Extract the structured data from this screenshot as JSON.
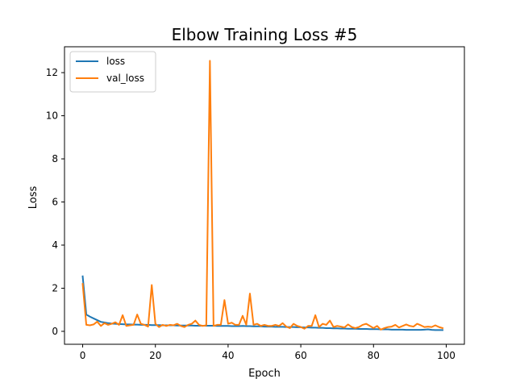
{
  "chart_data": {
    "type": "line",
    "title": "Elbow Training Loss #5",
    "xlabel": "Epoch",
    "ylabel": "Loss",
    "xlim": [
      -5,
      105
    ],
    "ylim": [
      -0.6,
      13.2
    ],
    "xticks": [
      0,
      20,
      40,
      60,
      80,
      100
    ],
    "yticks": [
      0,
      2,
      4,
      6,
      8,
      10,
      12
    ],
    "grid": false,
    "legend_position": "upper-left",
    "series": [
      {
        "name": "loss",
        "color": "#1f77b4",
        "x": [
          0,
          1,
          2,
          3,
          4,
          5,
          6,
          7,
          8,
          9,
          10,
          11,
          12,
          13,
          14,
          15,
          16,
          17,
          18,
          19,
          20,
          21,
          22,
          23,
          24,
          25,
          26,
          27,
          28,
          29,
          30,
          31,
          32,
          33,
          34,
          35,
          36,
          37,
          38,
          39,
          40,
          41,
          42,
          43,
          44,
          45,
          46,
          47,
          48,
          49,
          50,
          51,
          52,
          53,
          54,
          55,
          56,
          57,
          58,
          59,
          60,
          61,
          62,
          63,
          64,
          65,
          66,
          67,
          68,
          69,
          70,
          71,
          72,
          73,
          74,
          75,
          76,
          77,
          78,
          79,
          80,
          81,
          82,
          83,
          84,
          85,
          86,
          87,
          88,
          89,
          90,
          91,
          92,
          93,
          94,
          95,
          96,
          97,
          98,
          99
        ],
        "y": [
          2.55,
          0.78,
          0.68,
          0.6,
          0.52,
          0.44,
          0.41,
          0.38,
          0.36,
          0.35,
          0.34,
          0.33,
          0.32,
          0.32,
          0.31,
          0.31,
          0.3,
          0.3,
          0.3,
          0.29,
          0.29,
          0.29,
          0.28,
          0.28,
          0.28,
          0.28,
          0.27,
          0.27,
          0.27,
          0.27,
          0.27,
          0.26,
          0.26,
          0.26,
          0.26,
          0.26,
          0.26,
          0.25,
          0.25,
          0.25,
          0.25,
          0.24,
          0.24,
          0.24,
          0.25,
          0.24,
          0.24,
          0.23,
          0.23,
          0.23,
          0.22,
          0.22,
          0.22,
          0.21,
          0.21,
          0.21,
          0.2,
          0.2,
          0.2,
          0.19,
          0.19,
          0.18,
          0.18,
          0.17,
          0.17,
          0.16,
          0.16,
          0.15,
          0.15,
          0.14,
          0.14,
          0.13,
          0.13,
          0.12,
          0.12,
          0.12,
          0.11,
          0.11,
          0.11,
          0.1,
          0.1,
          0.1,
          0.09,
          0.09,
          0.09,
          0.08,
          0.08,
          0.08,
          0.08,
          0.07,
          0.07,
          0.07,
          0.07,
          0.07,
          0.08,
          0.09,
          0.07,
          0.06,
          0.06,
          0.06
        ]
      },
      {
        "name": "val_loss",
        "color": "#ff7f0e",
        "x": [
          0,
          1,
          2,
          3,
          4,
          5,
          6,
          7,
          8,
          9,
          10,
          11,
          12,
          13,
          14,
          15,
          16,
          17,
          18,
          19,
          20,
          21,
          22,
          23,
          24,
          25,
          26,
          27,
          28,
          29,
          30,
          31,
          32,
          33,
          34,
          35,
          36,
          37,
          38,
          39,
          40,
          41,
          42,
          43,
          44,
          45,
          46,
          47,
          48,
          49,
          50,
          51,
          52,
          53,
          54,
          55,
          56,
          57,
          58,
          59,
          60,
          61,
          62,
          63,
          64,
          65,
          66,
          67,
          68,
          69,
          70,
          71,
          72,
          73,
          74,
          75,
          76,
          77,
          78,
          79,
          80,
          81,
          82,
          83,
          84,
          85,
          86,
          87,
          88,
          89,
          90,
          91,
          92,
          93,
          94,
          95,
          96,
          97,
          98,
          99
        ],
        "y": [
          2.2,
          0.3,
          0.28,
          0.32,
          0.45,
          0.25,
          0.38,
          0.3,
          0.35,
          0.42,
          0.3,
          0.75,
          0.25,
          0.28,
          0.3,
          0.78,
          0.35,
          0.3,
          0.22,
          2.15,
          0.35,
          0.2,
          0.3,
          0.25,
          0.3,
          0.28,
          0.35,
          0.25,
          0.2,
          0.3,
          0.35,
          0.5,
          0.3,
          0.25,
          0.28,
          12.55,
          0.25,
          0.3,
          0.3,
          1.45,
          0.35,
          0.4,
          0.3,
          0.3,
          0.72,
          0.3,
          1.75,
          0.3,
          0.35,
          0.25,
          0.3,
          0.25,
          0.25,
          0.3,
          0.25,
          0.38,
          0.22,
          0.15,
          0.35,
          0.25,
          0.2,
          0.12,
          0.25,
          0.25,
          0.75,
          0.2,
          0.35,
          0.3,
          0.5,
          0.2,
          0.25,
          0.22,
          0.18,
          0.32,
          0.2,
          0.15,
          0.2,
          0.3,
          0.35,
          0.25,
          0.15,
          0.25,
          0.08,
          0.15,
          0.2,
          0.22,
          0.3,
          0.18,
          0.25,
          0.32,
          0.25,
          0.22,
          0.35,
          0.28,
          0.2,
          0.22,
          0.2,
          0.28,
          0.2,
          0.15
        ]
      }
    ]
  }
}
